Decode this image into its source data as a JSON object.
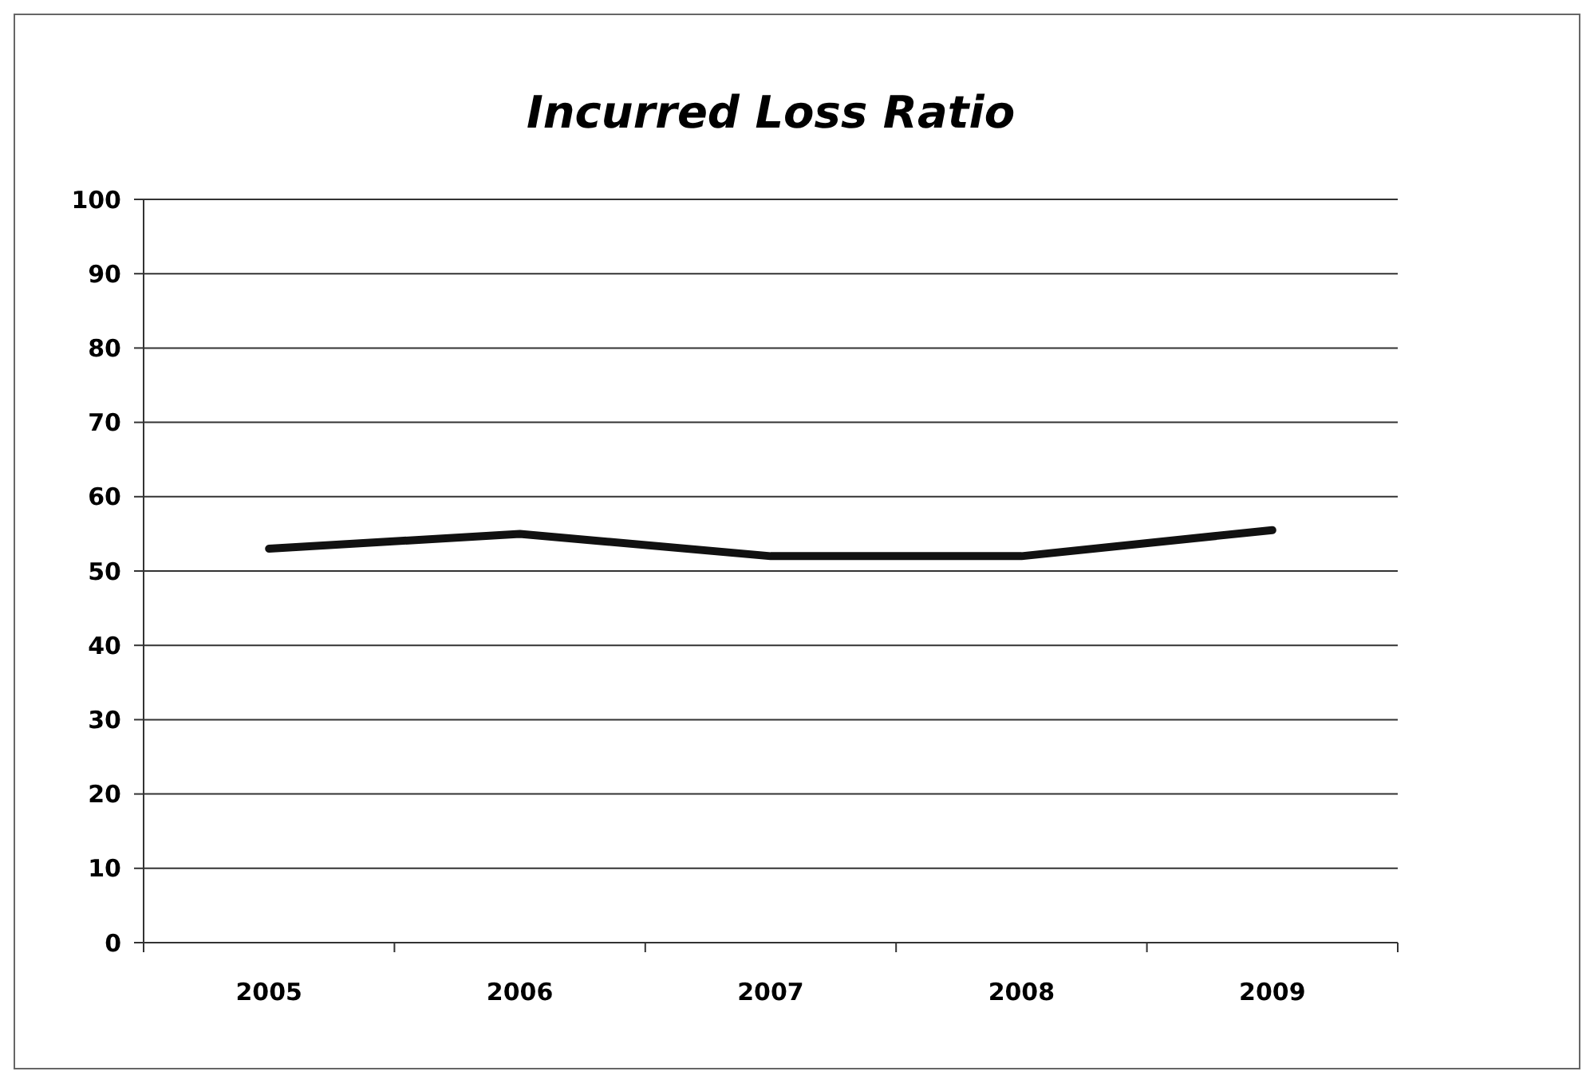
{
  "chart_data": {
    "type": "line",
    "title": "Incurred Loss Ratio",
    "categories": [
      "2005",
      "2006",
      "2007",
      "2008",
      "2009"
    ],
    "series": [
      {
        "color": "#111111",
        "values": [
          53,
          55,
          52,
          52,
          55.5
        ]
      }
    ],
    "ylim": [
      0,
      100
    ],
    "yticks": [
      0,
      10,
      20,
      30,
      40,
      50,
      60,
      70,
      80,
      90,
      100
    ],
    "grid": "y"
  }
}
